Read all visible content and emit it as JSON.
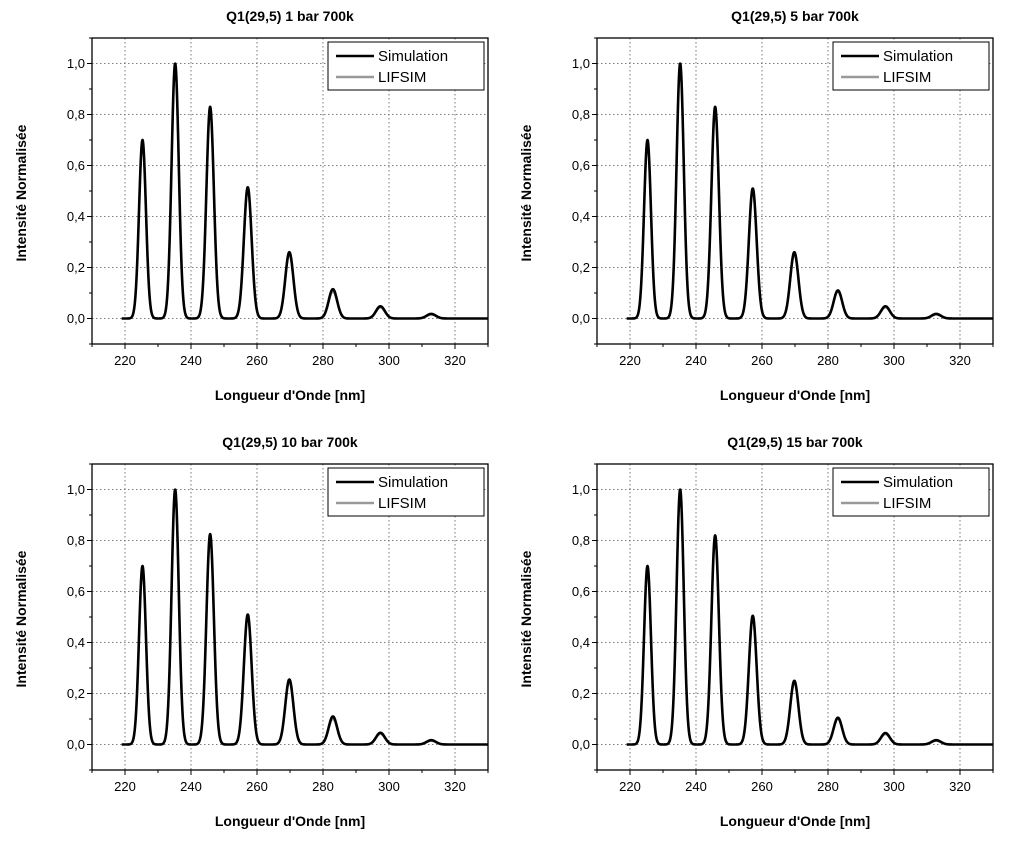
{
  "figure": {
    "legend": {
      "placement": "top-right",
      "items": [
        {
          "label": "Simulation",
          "color": "#000000"
        },
        {
          "label": "LIFSIM",
          "color": "#999999"
        }
      ]
    }
  },
  "chart_data": [
    {
      "type": "line",
      "title": "Q1(29,5) 1 bar 700k",
      "xlabel": "Longueur d'Onde [nm]",
      "ylabel": "Intensité Normalisée",
      "xlim": [
        210,
        330
      ],
      "ylim": [
        -0.1,
        1.1
      ],
      "xticks": [
        220,
        240,
        260,
        280,
        300,
        320
      ],
      "yticks": [
        0.0,
        0.2,
        0.4,
        0.6,
        0.8,
        1.0
      ],
      "ytick_labels": [
        "0,0",
        "0,2",
        "0,4",
        "0,6",
        "0,8",
        "1,0"
      ],
      "grid": true,
      "series": [
        {
          "name": "Simulation",
          "color": "#000000",
          "peaks_x": [
            225.3,
            235.2,
            245.8,
            257.2,
            269.8,
            283.0,
            297.4,
            312.8
          ],
          "peaks_y": [
            0.7,
            1.0,
            0.83,
            0.515,
            0.26,
            0.115,
            0.048,
            0.018
          ]
        },
        {
          "name": "LIFSIM",
          "color": "#999999",
          "peaks_x": [
            225.3,
            235.2,
            245.8,
            257.2,
            269.8,
            283.0,
            297.4,
            312.8
          ],
          "peaks_y": [
            0.69,
            0.99,
            0.82,
            0.505,
            0.25,
            0.105,
            0.043,
            0.015
          ]
        }
      ]
    },
    {
      "type": "line",
      "title": "Q1(29,5) 5 bar 700k",
      "xlabel": "Longueur d'Onde [nm]",
      "ylabel": "Intensité Normalisée",
      "xlim": [
        210,
        330
      ],
      "ylim": [
        -0.1,
        1.1
      ],
      "xticks": [
        220,
        240,
        260,
        280,
        300,
        320
      ],
      "yticks": [
        0.0,
        0.2,
        0.4,
        0.6,
        0.8,
        1.0
      ],
      "ytick_labels": [
        "0,0",
        "0,2",
        "0,4",
        "0,6",
        "0,8",
        "1,0"
      ],
      "grid": true,
      "series": [
        {
          "name": "Simulation",
          "color": "#000000",
          "peaks_x": [
            225.3,
            235.2,
            245.8,
            257.2,
            269.8,
            283.0,
            297.4,
            312.8
          ],
          "peaks_y": [
            0.7,
            1.0,
            0.83,
            0.51,
            0.26,
            0.11,
            0.048,
            0.018
          ]
        },
        {
          "name": "LIFSIM",
          "color": "#999999",
          "peaks_x": [
            225.3,
            235.2,
            245.8,
            257.2,
            269.8,
            283.0,
            297.4,
            312.8
          ],
          "peaks_y": [
            0.69,
            0.99,
            0.82,
            0.5,
            0.25,
            0.105,
            0.043,
            0.015
          ]
        }
      ]
    },
    {
      "type": "line",
      "title": "Q1(29,5) 10 bar 700k",
      "xlabel": "Longueur d'Onde [nm]",
      "ylabel": "Intensité Normalisée",
      "xlim": [
        210,
        330
      ],
      "ylim": [
        -0.1,
        1.1
      ],
      "xticks": [
        220,
        240,
        260,
        280,
        300,
        320
      ],
      "yticks": [
        0.0,
        0.2,
        0.4,
        0.6,
        0.8,
        1.0
      ],
      "ytick_labels": [
        "0,0",
        "0,2",
        "0,4",
        "0,6",
        "0,8",
        "1,0"
      ],
      "grid": true,
      "series": [
        {
          "name": "Simulation",
          "color": "#000000",
          "peaks_x": [
            225.3,
            235.2,
            245.8,
            257.2,
            269.8,
            283.0,
            297.4,
            312.8
          ],
          "peaks_y": [
            0.7,
            1.0,
            0.825,
            0.51,
            0.255,
            0.11,
            0.046,
            0.017
          ]
        },
        {
          "name": "LIFSIM",
          "color": "#999999",
          "peaks_x": [
            225.3,
            235.2,
            245.8,
            257.2,
            269.8,
            283.0,
            297.4,
            312.8
          ],
          "peaks_y": [
            0.69,
            0.99,
            0.815,
            0.5,
            0.245,
            0.1,
            0.041,
            0.014
          ]
        }
      ]
    },
    {
      "type": "line",
      "title": "Q1(29,5) 15 bar 700k",
      "xlabel": "Longueur d'Onde [nm]",
      "ylabel": "Intensité Normalisée",
      "xlim": [
        210,
        330
      ],
      "ylim": [
        -0.1,
        1.1
      ],
      "xticks": [
        220,
        240,
        260,
        280,
        300,
        320
      ],
      "yticks": [
        0.0,
        0.2,
        0.4,
        0.6,
        0.8,
        1.0
      ],
      "ytick_labels": [
        "0,0",
        "0,2",
        "0,4",
        "0,6",
        "0,8",
        "1,0"
      ],
      "grid": true,
      "series": [
        {
          "name": "Simulation",
          "color": "#000000",
          "peaks_x": [
            225.3,
            235.2,
            245.8,
            257.2,
            269.8,
            283.0,
            297.4,
            312.8
          ],
          "peaks_y": [
            0.7,
            1.0,
            0.82,
            0.505,
            0.25,
            0.105,
            0.045,
            0.017
          ]
        },
        {
          "name": "LIFSIM",
          "color": "#999999",
          "peaks_x": [
            225.3,
            235.2,
            245.8,
            257.2,
            269.8,
            283.0,
            297.4,
            312.8
          ],
          "peaks_y": [
            0.69,
            0.99,
            0.81,
            0.495,
            0.24,
            0.1,
            0.04,
            0.014
          ]
        }
      ]
    }
  ]
}
